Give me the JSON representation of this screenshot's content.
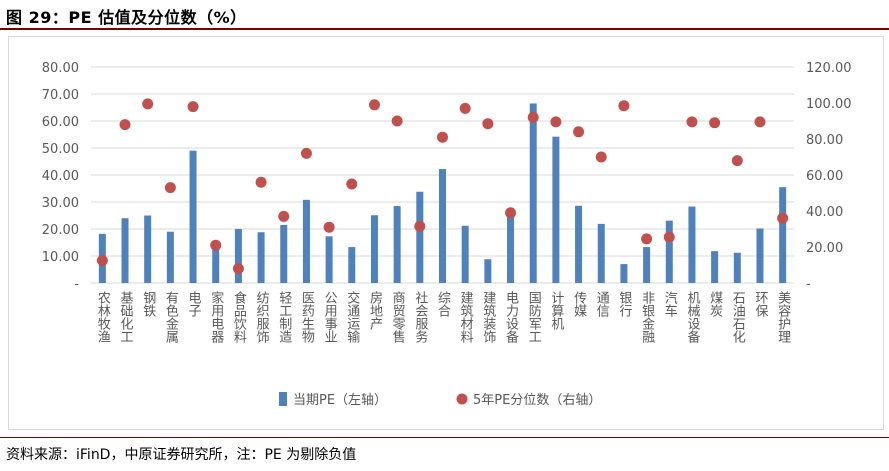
{
  "header": {
    "title": "图 29：PE 估值及分位数（%）"
  },
  "footer": {
    "source": "资料来源：iFinD，中原证券研究所，注：PE 为剔除负值"
  },
  "colors": {
    "bar": "#4f81bd",
    "dot": "#c0504d",
    "grid": "#d9d9d9",
    "text": "#595959",
    "rule": "#7f0000"
  },
  "chart_data": {
    "type": "bar",
    "categories": [
      "农林牧渔",
      "基础化工",
      "钢铁",
      "有色金属",
      "电子",
      "家用电器",
      "食品饮料",
      "纺织服饰",
      "轻工制造",
      "医药生物",
      "公用事业",
      "交通运输",
      "房地产",
      "商贸零售",
      "社会服务",
      "综合",
      "建筑材料",
      "建筑装饰",
      "电力设备",
      "国防军工",
      "计算机",
      "传媒",
      "通信",
      "银行",
      "非银金融",
      "汽车",
      "机械设备",
      "煤炭",
      "石油石化",
      "环保",
      "美容护理"
    ],
    "series": [
      {
        "name": "当期PE（左轴）",
        "type": "bar",
        "axis": "left",
        "values": [
          18.2,
          24.0,
          25.0,
          19.0,
          49.0,
          13.0,
          20.0,
          18.8,
          21.5,
          30.8,
          17.3,
          13.3,
          25.1,
          28.5,
          33.8,
          42.2,
          21.2,
          8.8,
          24.5,
          66.5,
          54.2,
          28.6,
          21.9,
          7.0,
          13.3,
          23.1,
          28.3,
          11.8,
          11.2,
          20.2,
          35.5
        ]
      },
      {
        "name": "5年PE分位数（右轴）",
        "type": "scatter",
        "axis": "right",
        "values": [
          12.5,
          88.0,
          99.5,
          53.0,
          98.0,
          21.0,
          8.0,
          56.0,
          37.0,
          72.0,
          31.0,
          55.0,
          99.0,
          90.0,
          31.5,
          81.0,
          97.0,
          88.5,
          39.0,
          92.0,
          89.5,
          84.0,
          70.0,
          98.5,
          24.5,
          25.5,
          89.5,
          89.0,
          68.0,
          89.5,
          36.0
        ]
      }
    ],
    "left_axis": {
      "ticks": [
        "-",
        "10.00",
        "20.00",
        "30.00",
        "40.00",
        "50.00",
        "60.00",
        "70.00",
        "80.00"
      ],
      "ylim": [
        0,
        80
      ]
    },
    "right_axis": {
      "ticks": [
        "-",
        "20.00",
        "40.00",
        "60.00",
        "80.00",
        "100.00",
        "120.00"
      ],
      "ylim": [
        0,
        120
      ]
    },
    "grid": true,
    "legend_position": "bottom"
  }
}
